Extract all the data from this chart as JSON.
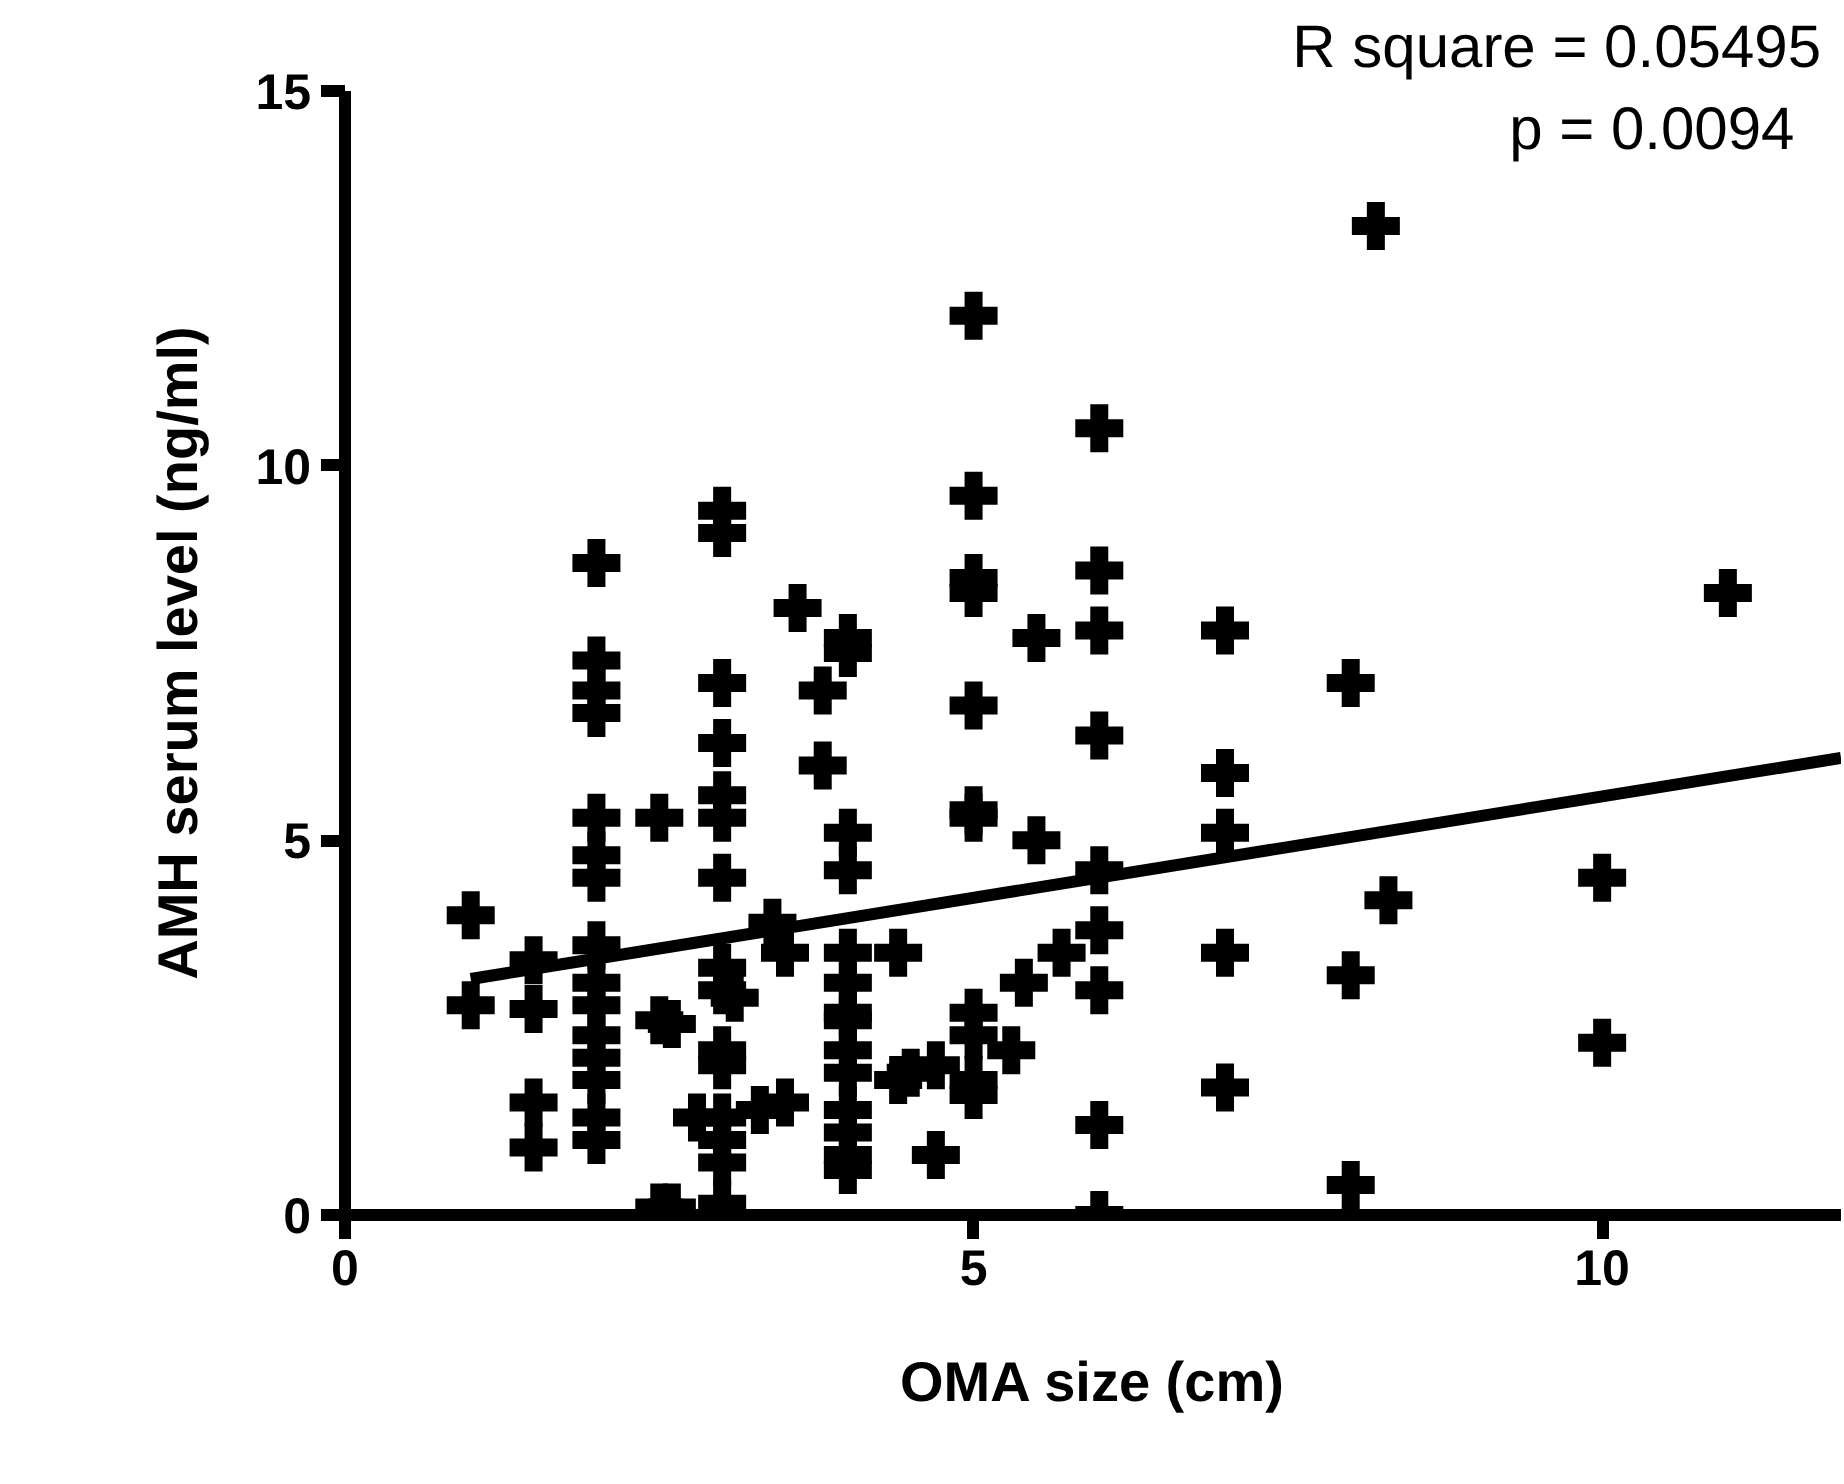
{
  "chart_data": {
    "type": "scatter",
    "xlabel": "OMA size (cm)",
    "ylabel": "AMH serum level (ng/ml)",
    "annotations": [
      "R square = 0.05495",
      "p  = 0.0094"
    ],
    "xlim": [
      0,
      11.9
    ],
    "ylim": [
      0,
      15
    ],
    "xticks": [
      0,
      5,
      10
    ],
    "yticks": [
      0,
      5,
      10,
      15
    ],
    "grid": false,
    "series": [
      {
        "marker": "cross",
        "color": "#000000",
        "x": [
          1,
          1,
          1.5,
          1.5,
          1.5,
          1.5,
          2,
          2,
          2,
          2,
          2,
          2,
          2,
          2,
          2,
          2,
          2,
          2,
          2,
          2,
          2,
          2.5,
          2.5,
          2.6,
          2.5,
          2.6,
          3,
          3,
          3,
          3,
          3,
          3,
          3,
          3,
          3,
          3,
          3,
          3,
          3,
          3,
          3,
          3.4,
          3.5,
          3.1,
          2.8,
          3.3,
          3.5,
          3.6,
          3.8,
          3.8,
          4,
          4,
          4,
          4,
          4,
          4,
          4,
          4,
          4,
          4,
          4,
          4,
          4,
          4,
          4.4,
          4.4,
          4.5,
          4.7,
          4.7,
          5,
          5,
          5,
          5,
          5,
          5,
          5,
          5,
          5,
          5,
          5,
          5.3,
          6,
          6,
          6,
          6,
          6,
          6,
          6,
          6,
          6,
          5.5,
          5.5,
          5.7,
          5.4,
          7,
          7,
          7,
          7,
          7,
          8,
          8,
          8,
          8.3,
          8.2,
          10,
          10,
          11
        ],
        "values": [
          4.0,
          2.8,
          3.4,
          2.75,
          1.5,
          0.9,
          8.7,
          7.4,
          7.0,
          6.7,
          5.3,
          4.8,
          4.5,
          3.6,
          3.1,
          2.8,
          2.4,
          2.1,
          1.8,
          1.3,
          1.0,
          5.3,
          2.6,
          2.55,
          0.1,
          0.1,
          9.4,
          9.1,
          7.1,
          6.3,
          5.6,
          5.3,
          4.5,
          3.3,
          3.0,
          2.2,
          2.0,
          1.3,
          1.0,
          0.7,
          0.15,
          3.9,
          3.5,
          2.9,
          1.3,
          1.4,
          1.5,
          8.1,
          7.0,
          6.0,
          7.7,
          7.5,
          5.1,
          4.6,
          3.5,
          3.1,
          2.6,
          2.2,
          1.9,
          1.4,
          1.1,
          0.8,
          0.6,
          2.7,
          3.5,
          1.8,
          1.9,
          2.0,
          0.8,
          12.0,
          9.6,
          8.5,
          8.3,
          6.8,
          5.4,
          5.3,
          2.7,
          2.4,
          1.8,
          1.6,
          2.2,
          10.5,
          8.6,
          7.8,
          6.4,
          4.6,
          3.8,
          3.0,
          1.2,
          0.0,
          7.7,
          5.0,
          3.5,
          3.1,
          7.8,
          5.9,
          5.1,
          3.5,
          1.7,
          7.1,
          3.2,
          0.4,
          4.2,
          13.2,
          4.5,
          2.3,
          8.3
        ]
      },
      {
        "type": "line",
        "color": "#000000",
        "x": [
          1,
          11.9
        ],
        "values": [
          3.15,
          6.1
        ]
      }
    ]
  }
}
